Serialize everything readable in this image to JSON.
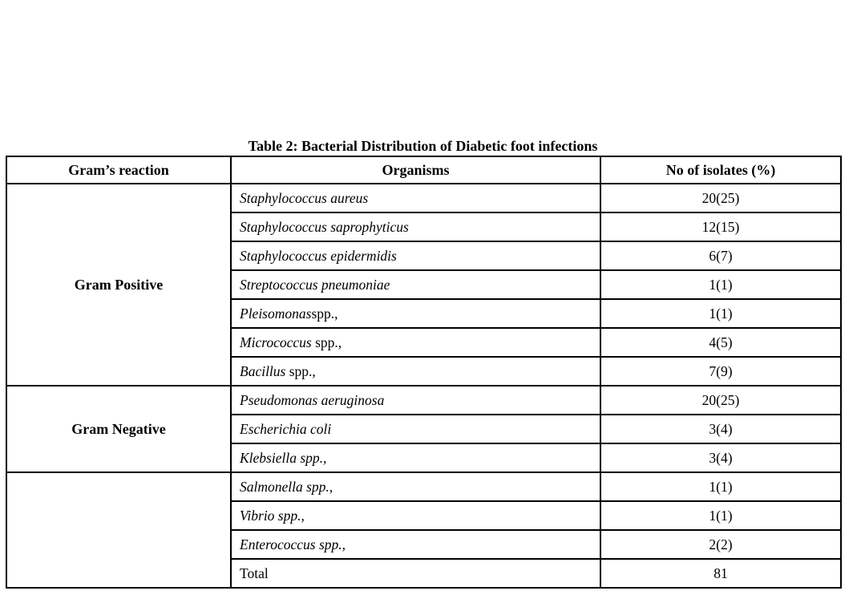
{
  "title": "Table 2: Bacterial Distribution of Diabetic foot infections",
  "table": {
    "headers": [
      "Gram’s reaction",
      "Organisms",
      "No of isolates (%)"
    ],
    "groups": [
      {
        "label": "Gram Positive",
        "rows": [
          {
            "organism_italic": "Staphylococcus aureus",
            "organism_roman": "",
            "isolates": "20(25)"
          },
          {
            "organism_italic": "Staphylococcus saprophyticus",
            "organism_roman": "",
            "isolates": "12(15)"
          },
          {
            "organism_italic": "Staphylococcus epidermidis",
            "organism_roman": "",
            "isolates": "6(7)"
          },
          {
            "organism_italic": "Streptococcus pneumoniae",
            "organism_roman": "",
            "isolates": "1(1)"
          },
          {
            "organism_italic": "Pleisomonas",
            "organism_roman": "spp.,",
            "isolates": "1(1)"
          },
          {
            "organism_italic": "Micrococcus",
            "organism_roman": " spp.,",
            "isolates": "4(5)"
          },
          {
            "organism_italic": "Bacillus",
            "organism_roman": " spp.,",
            "isolates": "7(9)"
          }
        ]
      },
      {
        "label": "Gram Negative",
        "rows": [
          {
            "organism_italic": "Pseudomonas aeruginosa",
            "organism_roman": "",
            "isolates": "20(25)"
          },
          {
            "organism_italic": "Escherichia coli",
            "organism_roman": "",
            "isolates": "3(4)"
          },
          {
            "organism_italic": "Klebsiella spp.,",
            "organism_roman": "",
            "isolates": "3(4)"
          }
        ]
      },
      {
        "label": "",
        "rows": [
          {
            "organism_italic": "Salmonella spp.,",
            "organism_roman": "",
            "isolates": "1(1)"
          },
          {
            "organism_italic": "Vibrio spp.,",
            "organism_roman": "",
            "isolates": "1(1)"
          },
          {
            "organism_italic": "Enterococcus spp.,",
            "organism_roman": "",
            "isolates": "2(2)"
          },
          {
            "organism_italic": "",
            "organism_roman": "Total",
            "isolates": "81"
          }
        ]
      }
    ]
  }
}
